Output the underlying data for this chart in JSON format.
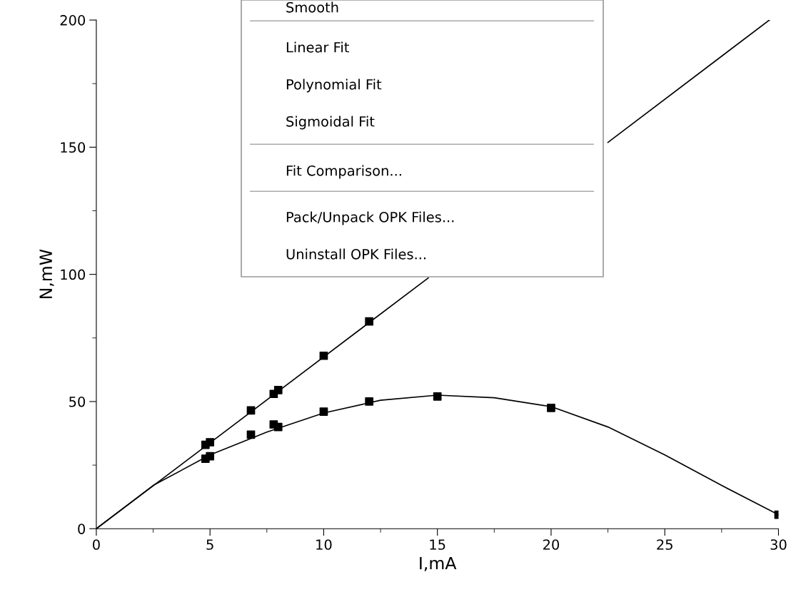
{
  "chart_data": {
    "type": "scatter",
    "xlabel": "I,mA",
    "ylabel": "N,mW",
    "xlim": [
      0,
      30
    ],
    "xticks": [
      0,
      5,
      10,
      15,
      20,
      25,
      30
    ],
    "ylim": [
      0,
      200
    ],
    "yticks": [
      0,
      50,
      100,
      150,
      200
    ],
    "grid": false,
    "legend": false,
    "series": [
      {
        "color": "#000000",
        "marker": "square",
        "x": [
          4.8,
          5,
          6.8,
          7.8,
          8,
          10,
          12
        ],
        "values": [
          33,
          34,
          46.5,
          53,
          54.5,
          68,
          81.5
        ]
      },
      {
        "color": "#000000",
        "marker": "square",
        "x": [
          4.8,
          5,
          6.8,
          7.8,
          8,
          10,
          12,
          15,
          20,
          30
        ],
        "values": [
          27.5,
          28.5,
          37,
          41,
          40,
          46,
          50,
          52,
          47.5,
          5.5
        ]
      },
      {
        "type": "line",
        "color": "#000000",
        "marker": "none",
        "x": [
          0,
          14.6,
          18,
          22.5,
          29.6
        ],
        "values": [
          0,
          98.6,
          null,
          151.9,
          200
        ]
      },
      {
        "type": "line",
        "color": "#000000",
        "marker": "none",
        "x": [
          0,
          2.5,
          5,
          7.5,
          10,
          12.5,
          15,
          17.5,
          20,
          22.5,
          25,
          27.5,
          30
        ],
        "values": [
          0,
          17,
          29,
          38,
          45.5,
          50.5,
          52.5,
          51.5,
          48,
          40,
          29,
          17,
          5.5
        ]
      }
    ],
    "annotations": [
      "Smooth",
      "Linear Fit",
      "Polynomial Fit",
      "Sigmoidal Fit",
      "Fit Comparison...",
      "Pack/Unpack OPK Files...",
      "Uninstall OPK Files..."
    ]
  }
}
